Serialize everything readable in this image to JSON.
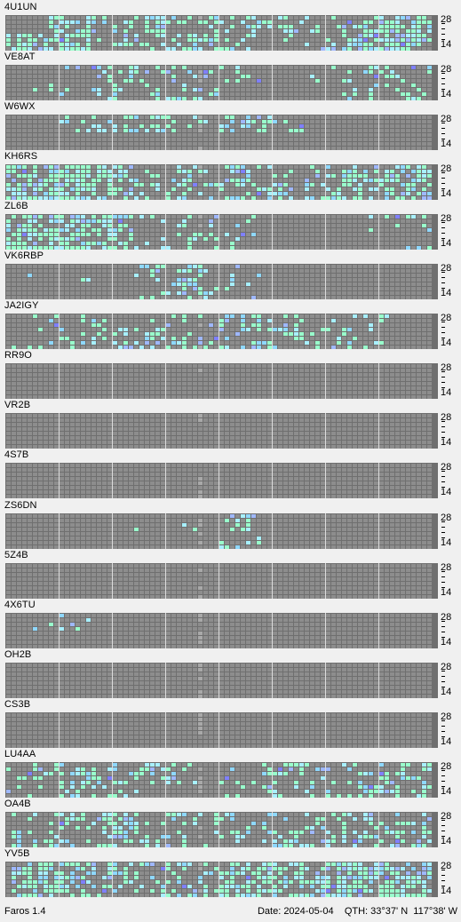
{
  "app": {
    "name": "Faros 1.4"
  },
  "status": {
    "date_label": "Date:",
    "date": "2024-05-04",
    "qth_label": "QTH:",
    "lat": "33°37' N",
    "lon": "117°38' W"
  },
  "scale": {
    "top": "28",
    "bottom": "14"
  },
  "colors": {
    "background": "#f0f0f0",
    "grid": "#6f6f6f",
    "empty_cell": "#8d8d8d",
    "divider": "#dcdcdc",
    "signal_strong": "#99ffcc",
    "signal_good": "#a8f0ff",
    "signal_medium": "#8fd8ff",
    "signal_weak": "#9fb8ff",
    "signal_faint": "#7f80ff"
  },
  "beacons": [
    {
      "callsign": "4U1UN",
      "activity": [
        [
          0,
          0.65,
          0.35,
          0.6,
          0.35,
          0.35,
          0.35,
          0.2,
          0.55,
          0.7
        ],
        [
          0.7,
          0.6,
          0.25,
          0.3,
          0.55,
          0.2,
          0.25,
          0.35,
          0.65,
          0.75
        ]
      ]
    },
    {
      "callsign": "VE8AT",
      "activity": [
        [
          0,
          0.05,
          0.5,
          0.45,
          0.25,
          0.15,
          0,
          0.1,
          0.25,
          0.15
        ],
        [
          0.05,
          0.1,
          0.35,
          0.25,
          0.35,
          0,
          0,
          0.1,
          0.3,
          0.25
        ]
      ]
    },
    {
      "callsign": "W6WX",
      "activity": [
        [
          0,
          0.2,
          0.45,
          0.4,
          0.2,
          0.45,
          0.35,
          0,
          0,
          0
        ],
        [
          0,
          0,
          0,
          0,
          0,
          0,
          0,
          0,
          0,
          0
        ]
      ]
    },
    {
      "callsign": "KH6RS",
      "activity": [
        [
          0.7,
          0.8,
          0.45,
          0.2,
          0.25,
          0.25,
          0.15,
          0.25,
          0.55,
          0.6
        ],
        [
          0.75,
          0.85,
          0.4,
          0.35,
          0.3,
          0.35,
          0.3,
          0.35,
          0.45,
          0.65
        ]
      ]
    },
    {
      "callsign": "ZL6B",
      "activity": [
        [
          0.65,
          0.75,
          0.65,
          0.2,
          0.25,
          0.05,
          0,
          0,
          0.1,
          0.25
        ],
        [
          0.65,
          0.75,
          0.55,
          0.3,
          0.3,
          0.2,
          0,
          0,
          0,
          0.15
        ]
      ]
    },
    {
      "callsign": "VK6RBP",
      "activity": [
        [
          0.05,
          0.05,
          0,
          0.15,
          0.45,
          0.2,
          0,
          0,
          0,
          0
        ],
        [
          0,
          0,
          0,
          0.1,
          0.35,
          0.3,
          0,
          0,
          0,
          0
        ]
      ]
    },
    {
      "callsign": "JA2IGY",
      "activity": [
        [
          0.05,
          0.2,
          0.25,
          0.2,
          0.25,
          0.25,
          0.2,
          0.15,
          0.2,
          0.05
        ],
        [
          0.05,
          0.1,
          0.3,
          0.3,
          0.35,
          0.3,
          0.35,
          0.25,
          0.2,
          0
        ]
      ]
    },
    {
      "callsign": "RR9O",
      "activity": [
        [
          0,
          0,
          0,
          0,
          0,
          0,
          0,
          0,
          0,
          0
        ],
        [
          0,
          0,
          0,
          0,
          0,
          0,
          0,
          0,
          0,
          0
        ]
      ]
    },
    {
      "callsign": "VR2B",
      "activity": [
        [
          0,
          0,
          0,
          0,
          0,
          0,
          0,
          0,
          0,
          0
        ],
        [
          0,
          0,
          0,
          0,
          0,
          0,
          0,
          0,
          0,
          0
        ]
      ]
    },
    {
      "callsign": "4S7B",
      "activity": [
        [
          0,
          0,
          0,
          0,
          0,
          0,
          0,
          0,
          0,
          0
        ],
        [
          0,
          0,
          0,
          0,
          0,
          0,
          0,
          0,
          0,
          0
        ]
      ]
    },
    {
      "callsign": "ZS6DN",
      "activity": [
        [
          0,
          0,
          0,
          0.05,
          0.1,
          0.3,
          0,
          0,
          0,
          0
        ],
        [
          0,
          0,
          0,
          0,
          0,
          0.2,
          0,
          0,
          0,
          0
        ]
      ]
    },
    {
      "callsign": "5Z4B",
      "activity": [
        [
          0,
          0,
          0,
          0,
          0,
          0,
          0,
          0,
          0,
          0
        ],
        [
          0,
          0,
          0,
          0,
          0,
          0,
          0,
          0,
          0,
          0
        ]
      ]
    },
    {
      "callsign": "4X6TU",
      "activity": [
        [
          0.15,
          0.2,
          0,
          0,
          0,
          0,
          0,
          0,
          0,
          0
        ],
        [
          0,
          0,
          0,
          0,
          0,
          0,
          0,
          0,
          0,
          0
        ]
      ]
    },
    {
      "callsign": "OH2B",
      "activity": [
        [
          0,
          0,
          0,
          0,
          0,
          0,
          0,
          0,
          0,
          0
        ],
        [
          0,
          0,
          0,
          0,
          0,
          0,
          0,
          0,
          0,
          0
        ]
      ]
    },
    {
      "callsign": "CS3B",
      "activity": [
        [
          0,
          0,
          0,
          0,
          0,
          0,
          0,
          0,
          0,
          0
        ],
        [
          0,
          0,
          0,
          0,
          0,
          0,
          0,
          0,
          0,
          0
        ]
      ]
    },
    {
      "callsign": "LU4AA",
      "activity": [
        [
          0.3,
          0.45,
          0.35,
          0.45,
          0.15,
          0.05,
          0.4,
          0.25,
          0.35,
          0.45
        ],
        [
          0.25,
          0.35,
          0.4,
          0.25,
          0.1,
          0.15,
          0.35,
          0.3,
          0.4,
          0.3
        ]
      ]
    },
    {
      "callsign": "OA4B",
      "activity": [
        [
          0.15,
          0.35,
          0.45,
          0.25,
          0.2,
          0.2,
          0.35,
          0.4,
          0.3,
          0.35
        ],
        [
          0.25,
          0.3,
          0.4,
          0.25,
          0.15,
          0.25,
          0.35,
          0.35,
          0.3,
          0.35
        ]
      ]
    },
    {
      "callsign": "YV5B",
      "activity": [
        [
          0.6,
          0.5,
          0.4,
          0.25,
          0.25,
          0.35,
          0.65,
          0.6,
          0.8,
          0.7
        ],
        [
          0.55,
          0.55,
          0.45,
          0.35,
          0.4,
          0.55,
          0.6,
          0.65,
          0.7,
          0.65
        ]
      ]
    }
  ]
}
